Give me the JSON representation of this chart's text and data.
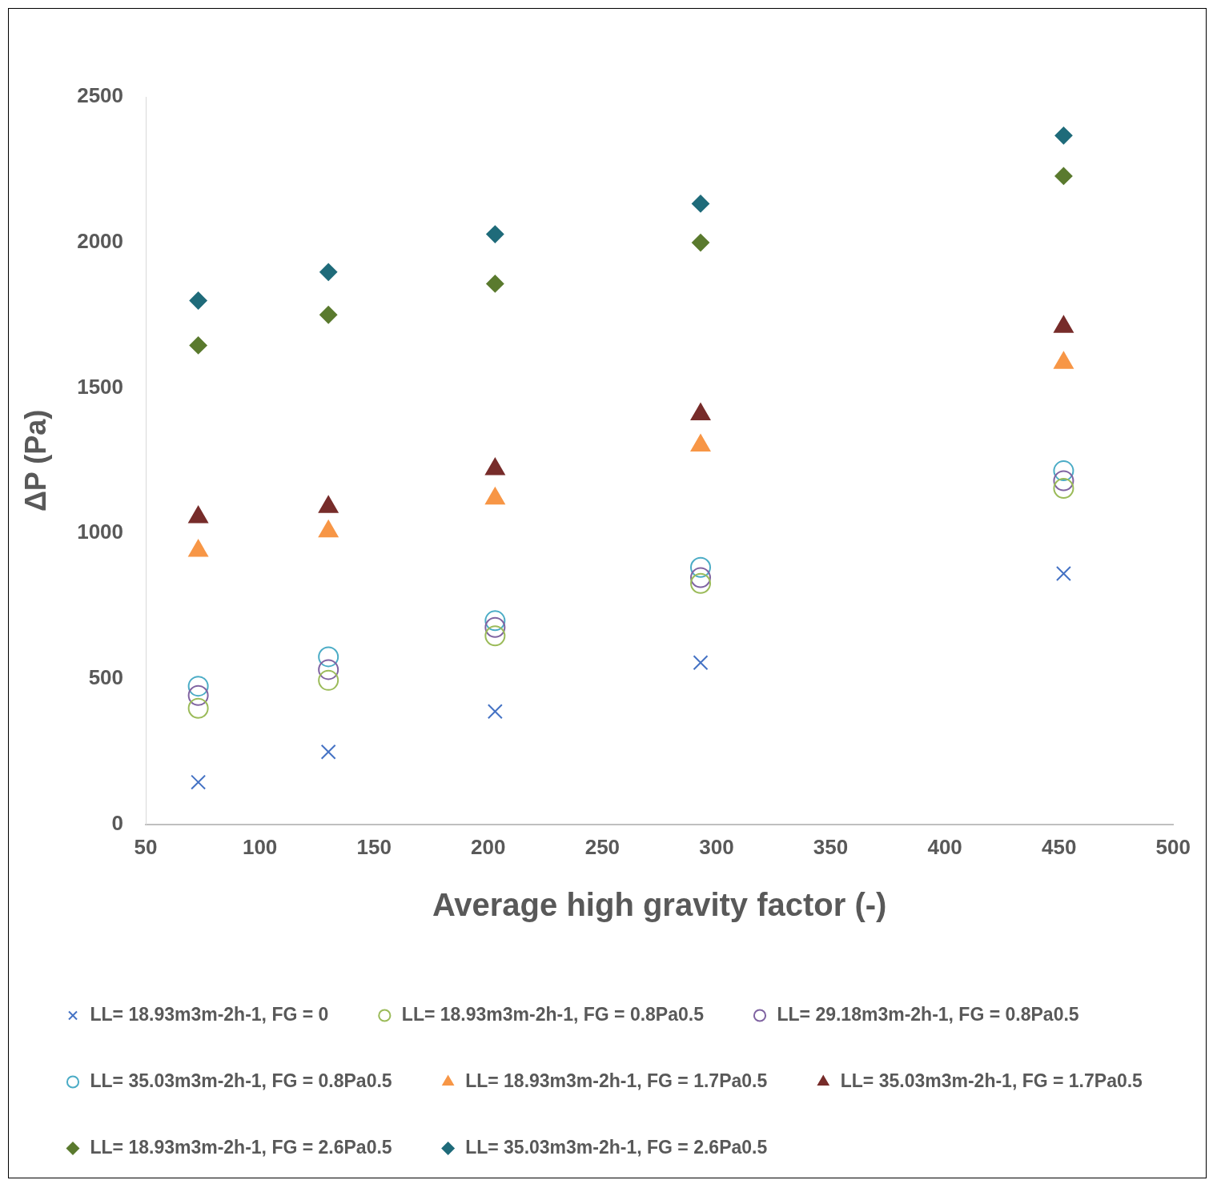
{
  "chart_data": {
    "type": "scatter",
    "xlabel": "Average high gravity factor (-)",
    "ylabel": "ΔP (Pa)",
    "xlim": [
      50,
      500
    ],
    "xticks": [
      50,
      100,
      150,
      200,
      250,
      300,
      350,
      400,
      450,
      500
    ],
    "ylim": [
      0,
      2500
    ],
    "yticks": [
      0,
      500,
      1000,
      1500,
      2000,
      2500
    ],
    "grid": false,
    "legend": "bottom",
    "x": [
      73,
      130,
      203,
      293,
      452
    ],
    "series": [
      {
        "name": "LL= 18.93m3m-2h-1, FG = 0",
        "color": "#4472c4",
        "marker": "cross",
        "values": [
          145,
          249,
          388,
          556,
          862
        ]
      },
      {
        "name": "LL= 18.93m3m-2h-1, FG = 0.8Pa0.5",
        "color": "#9bbb59",
        "marker": "circle",
        "values": [
          399,
          495,
          648,
          828,
          1155
        ]
      },
      {
        "name": "LL= 29.18m3m-2h-1, FG = 0.8Pa0.5",
        "color": "#8064a2",
        "marker": "circle",
        "values": [
          443,
          532,
          677,
          848,
          1181
        ]
      },
      {
        "name": "LL= 35.03m3m-2h-1, FG = 0.8Pa0.5",
        "color": "#4bacc6",
        "marker": "circle",
        "values": [
          475,
          576,
          700,
          883,
          1215
        ]
      },
      {
        "name": "LL= 18.93m3m-2h-1, FG = 1.7Pa0.5",
        "color": "#f79646",
        "marker": "triangle",
        "values": [
          940,
          1007,
          1120,
          1302,
          1586
        ]
      },
      {
        "name": "LL= 35.03m3m-2h-1, FG = 1.7Pa0.5",
        "color": "#772c2a",
        "marker": "triangle",
        "values": [
          1056,
          1091,
          1221,
          1409,
          1710
        ]
      },
      {
        "name": "LL= 18.93m3m-2h-1, FG = 2.6Pa0.5",
        "color": "#5a7a2e",
        "marker": "diamond",
        "values": [
          1646,
          1751,
          1858,
          1999,
          2228
        ]
      },
      {
        "name": "LL= 35.03m3m-2h-1, FG = 2.6Pa0.5",
        "color": "#1f6b7a",
        "marker": "diamond",
        "values": [
          1800,
          1898,
          2028,
          2133,
          2367
        ]
      }
    ]
  }
}
